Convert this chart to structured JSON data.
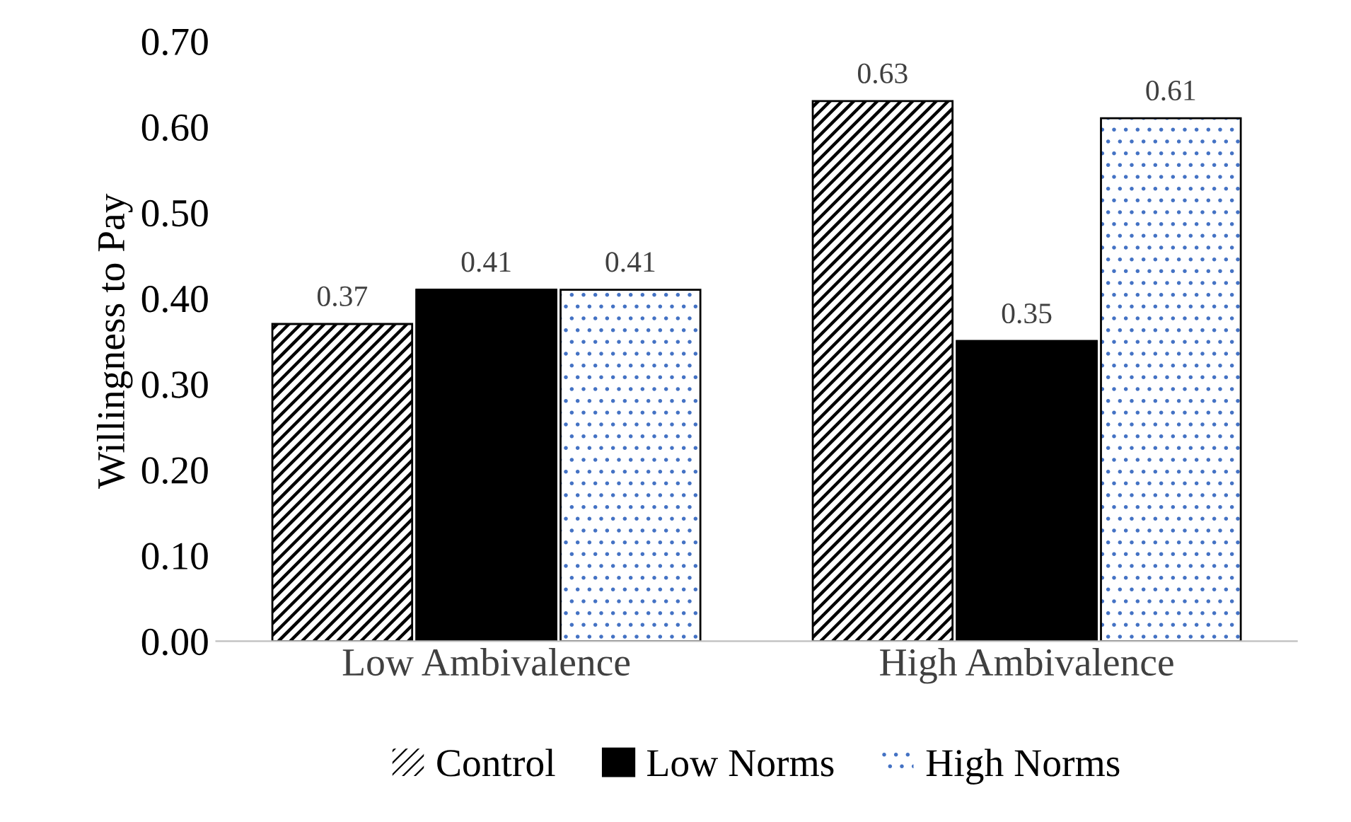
{
  "chart_data": {
    "type": "bar",
    "ylabel": "Willingness to Pay",
    "categories": [
      "Low Ambivalence",
      "High Ambivalence"
    ],
    "series": [
      {
        "name": "Control",
        "color": "#000000",
        "values": [
          0.37,
          0.63
        ]
      },
      {
        "name": "Low Norms",
        "color": "#000000",
        "values": [
          0.41,
          0.35
        ]
      },
      {
        "name": "High Norms",
        "color": "#4472c4",
        "values": [
          0.41,
          0.61
        ]
      }
    ],
    "ylim": [
      0,
      0.7
    ],
    "yticks": [
      {
        "value": 0,
        "label": "0.00"
      },
      {
        "value": 0.1,
        "label": "0.10"
      },
      {
        "value": 0.2,
        "label": "0.20"
      },
      {
        "value": 0.3,
        "label": "0.30"
      },
      {
        "value": 0.4,
        "label": "0.40"
      },
      {
        "value": 0.5,
        "label": "0.50"
      },
      {
        "value": 0.6,
        "label": "0.60"
      },
      {
        "value": 0.7,
        "label": "0.70"
      }
    ],
    "grid": false,
    "legend": "bottom",
    "data_labels": true
  }
}
